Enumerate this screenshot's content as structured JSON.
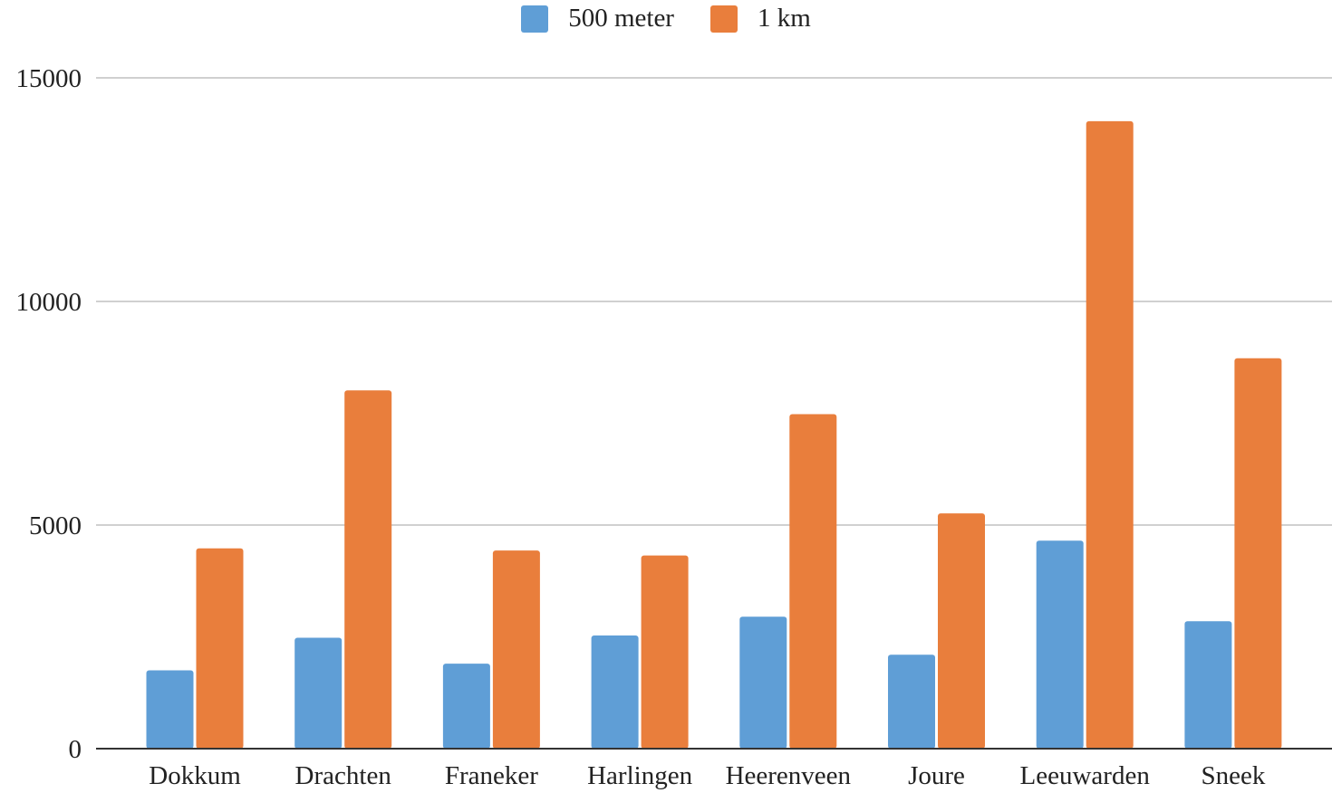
{
  "chart_data": {
    "type": "bar",
    "title": "",
    "xlabel": "",
    "ylabel": "",
    "categories": [
      "Dokkum",
      "Drachten",
      "Franeker",
      "Harlingen",
      "Heerenveen",
      "Joure",
      "Leeuwarden",
      "Sneek"
    ],
    "series": [
      {
        "name": "500 meter",
        "color": "#5f9ed6",
        "values": [
          1750,
          2480,
          1900,
          2530,
          2950,
          2100,
          4650,
          2850
        ]
      },
      {
        "name": "1 km",
        "color": "#e97e3c",
        "values": [
          4480,
          8010,
          4430,
          4320,
          7480,
          5260,
          14030,
          8730
        ]
      }
    ],
    "ylim": [
      0,
      15000
    ],
    "yticks": [
      "0",
      "5000",
      "10000",
      "15000"
    ],
    "grid": true,
    "legend_position": "top"
  }
}
